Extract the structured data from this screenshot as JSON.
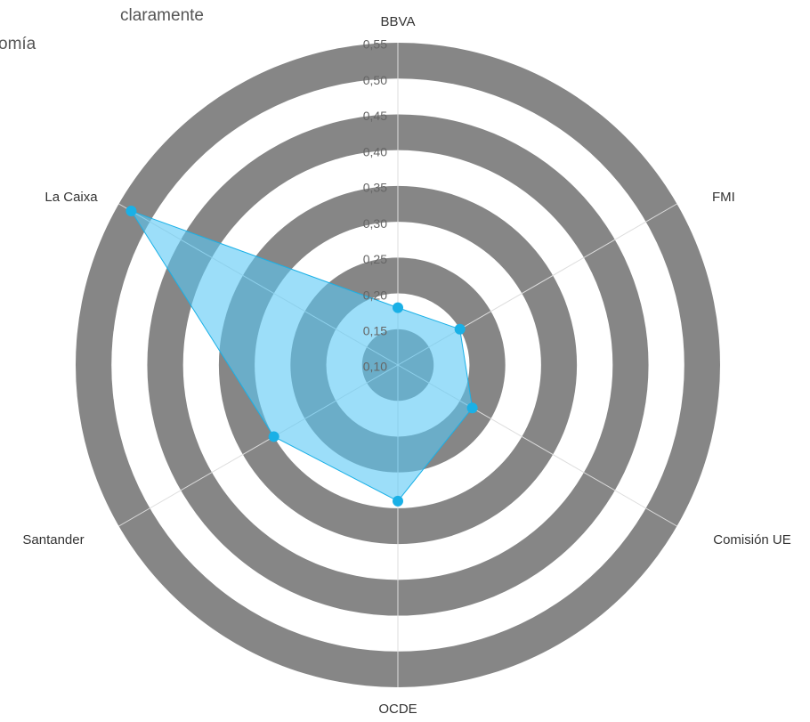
{
  "chart_data": {
    "type": "radar",
    "background_text": [
      "claramente",
      "omía"
    ],
    "categories": [
      "BBVA",
      "FMI",
      "Comisión UE",
      "OCDE",
      "Santander",
      "La Caixa"
    ],
    "series": [
      {
        "color": "#1ab0e6",
        "values": [
          0.18,
          0.2,
          0.22,
          0.29,
          0.3,
          0.53
        ]
      }
    ],
    "ylim": [
      0.1,
      0.55
    ],
    "yticks": [
      {
        "value": 0.1,
        "label": "0,10"
      },
      {
        "value": 0.15,
        "label": "0,15"
      },
      {
        "value": 0.2,
        "label": "0,20"
      },
      {
        "value": 0.25,
        "label": "0,25"
      },
      {
        "value": 0.3,
        "label": "0,30"
      },
      {
        "value": 0.35,
        "label": "0,35"
      },
      {
        "value": 0.4,
        "label": "0,40"
      },
      {
        "value": 0.45,
        "label": "0,45"
      },
      {
        "value": 0.5,
        "label": "0,50"
      },
      {
        "value": 0.55,
        "label": "0,55"
      }
    ],
    "band_colors": [
      "#868686",
      "#ffffff"
    ]
  }
}
